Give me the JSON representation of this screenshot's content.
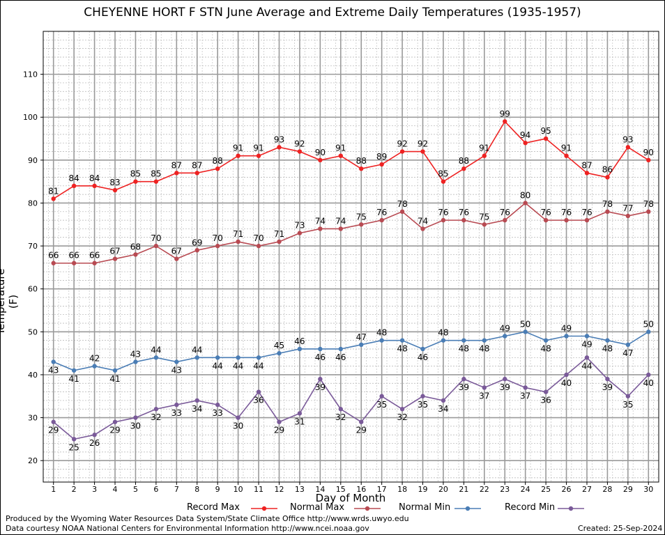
{
  "chart_data": {
    "type": "line",
    "title": "CHEYENNE HORT F STN June Average and Extreme Daily Temperatures (1935-1957)",
    "xlabel": "Day of Month",
    "ylabel": "Temperature (F)",
    "x": [
      1,
      2,
      3,
      4,
      5,
      6,
      7,
      8,
      9,
      10,
      11,
      12,
      13,
      14,
      15,
      16,
      17,
      18,
      19,
      20,
      21,
      22,
      23,
      24,
      25,
      26,
      27,
      28,
      29,
      30
    ],
    "xlim": [
      0.5,
      30.5
    ],
    "ylim": [
      15,
      120
    ],
    "yticks": [
      20,
      30,
      40,
      50,
      60,
      70,
      80,
      90,
      100,
      110
    ],
    "grid": true,
    "legend_position": "bottom",
    "series": [
      {
        "name": "Record Max",
        "color": "#ee2222",
        "values": [
          81,
          84,
          84,
          83,
          85,
          85,
          87,
          87,
          88,
          91,
          91,
          93,
          92,
          90,
          91,
          88,
          89,
          92,
          92,
          85,
          88,
          91,
          99,
          94,
          95,
          91,
          87,
          86,
          93,
          90
        ]
      },
      {
        "name": "Normal Max",
        "color": "#b84a52",
        "values": [
          66,
          66,
          66,
          67,
          68,
          70,
          67,
          69,
          70,
          71,
          70,
          71,
          73,
          74,
          74,
          75,
          76,
          78,
          74,
          76,
          76,
          75,
          76,
          80,
          76,
          76,
          76,
          78,
          77,
          78
        ]
      },
      {
        "name": "Normal Min",
        "color": "#4a7db5",
        "values": [
          43,
          41,
          42,
          41,
          43,
          44,
          43,
          44,
          44,
          44,
          44,
          45,
          46,
          46,
          46,
          47,
          48,
          48,
          46,
          48,
          48,
          48,
          49,
          50,
          48,
          49,
          49,
          48,
          47,
          50
        ]
      },
      {
        "name": "Record Min",
        "color": "#7a5a99",
        "values": [
          29,
          25,
          26,
          29,
          30,
          32,
          33,
          34,
          33,
          30,
          36,
          29,
          31,
          39,
          32,
          29,
          35,
          32,
          35,
          34,
          39,
          37,
          39,
          37,
          36,
          40,
          44,
          39,
          35,
          40
        ]
      }
    ]
  },
  "footer": {
    "produced_by": "Produced by the Wyoming Water Resources Data System/State Climate Office http://www.wrds.uwyo.edu",
    "data_courtesy": "Data courtesy NOAA National Centers for Environmental Information http://www.ncei.noaa.gov",
    "created": "Created: 25-Sep-2024"
  }
}
